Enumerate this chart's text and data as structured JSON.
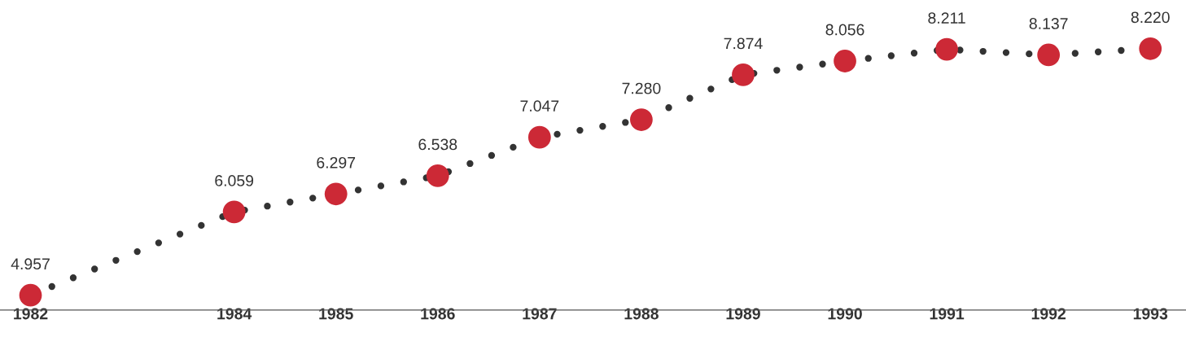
{
  "chart_data": {
    "type": "line",
    "x": [
      1982,
      1984,
      1985,
      1986,
      1987,
      1988,
      1989,
      1990,
      1991,
      1992,
      1993
    ],
    "series": [
      {
        "color": "#333333",
        "colors": [
          "#cc2936",
          "#cc2936",
          "#cc2936",
          "#cc2936",
          "#cc2936",
          "#cc2936",
          "#cc2936",
          "#cc2936",
          "#cc2936",
          "#cc2936",
          "#cc2936"
        ],
        "values": [
          4.957,
          6.059,
          6.297,
          6.538,
          7.047,
          7.28,
          7.874,
          8.056,
          8.211,
          8.137,
          8.22
        ],
        "value_labels": [
          "4.957",
          "6.059",
          "6.297",
          "6.538",
          "7.047",
          "7.280",
          "7.874",
          "8.056",
          "8.211",
          "8.137",
          "8.220"
        ]
      }
    ],
    "xlim": [
      1981.7,
      1993.35
    ],
    "xticks": [
      1982,
      1984,
      1985,
      1986,
      1987,
      1988,
      1989,
      1990,
      1991,
      1992,
      1993
    ],
    "marker": "circle",
    "line_style": "dotted",
    "grid": false,
    "legend": false
  }
}
